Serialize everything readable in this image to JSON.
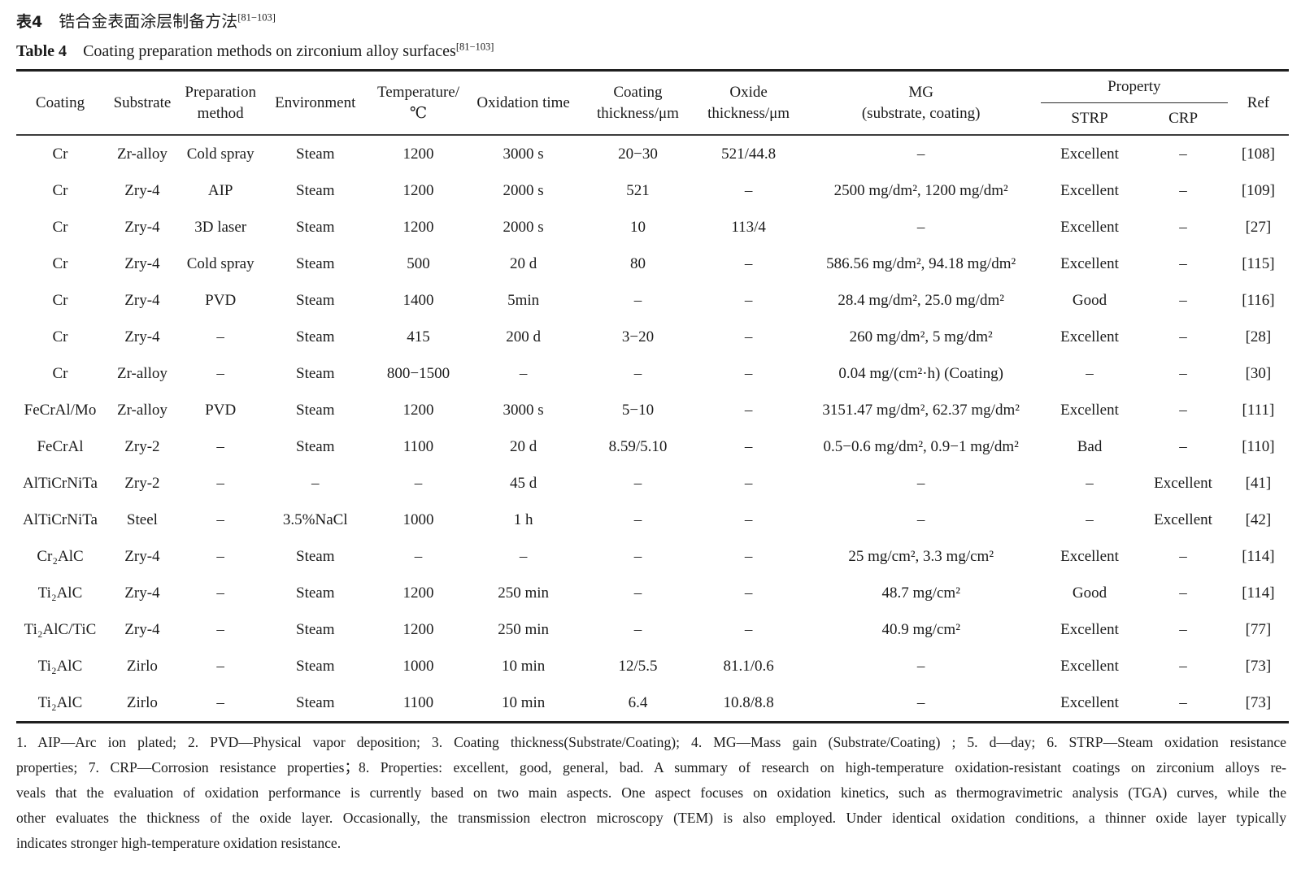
{
  "titles": {
    "zh_label": "表4",
    "zh_text": "锆合金表面涂层制备方法",
    "zh_citation": "[81−103]",
    "en_label": "Table 4",
    "en_text": "Coating preparation methods on zirconium alloy surfaces",
    "en_citation": "[81−103]"
  },
  "table": {
    "headers": {
      "coating": "Coating",
      "substrate": "Substrate",
      "preparation_line1": "Preparation",
      "preparation_line2": "method",
      "environment": "Environment",
      "temperature_line1": "Temperature/",
      "temperature_line2": "℃",
      "oxidation_time": "Oxidation time",
      "coating_thickness_line1": "Coating",
      "coating_thickness_line2": "thickness/μm",
      "oxide_thickness_line1": "Oxide",
      "oxide_thickness_line2": "thickness/μm",
      "mg_line1": "MG",
      "mg_line2": "(substrate, coating)",
      "property": "Property",
      "strp": "STRP",
      "crp": "CRP",
      "ref": "Ref"
    },
    "rows": [
      [
        "Cr",
        "Zr-alloy",
        "Cold spray",
        "Steam",
        "1200",
        "3000 s",
        "20−30",
        "521/44.8",
        "–",
        "Excellent",
        "–",
        "[108]"
      ],
      [
        "Cr",
        "Zry-4",
        "AIP",
        "Steam",
        "1200",
        "2000 s",
        "521",
        "–",
        "2500 mg/dm², 1200 mg/dm²",
        "Excellent",
        "–",
        "[109]"
      ],
      [
        "Cr",
        "Zry-4",
        "3D laser",
        "Steam",
        "1200",
        "2000 s",
        "10",
        "113/4",
        "–",
        "Excellent",
        "–",
        "[27]"
      ],
      [
        "Cr",
        "Zry-4",
        "Cold spray",
        "Steam",
        "500",
        "20 d",
        "80",
        "–",
        "586.56 mg/dm², 94.18 mg/dm²",
        "Excellent",
        "–",
        "[115]"
      ],
      [
        "Cr",
        "Zry-4",
        "PVD",
        "Steam",
        "1400",
        "5min",
        "–",
        "–",
        "28.4 mg/dm², 25.0 mg/dm²",
        "Good",
        "–",
        "[116]"
      ],
      [
        "Cr",
        "Zry-4",
        "–",
        "Steam",
        "415",
        "200 d",
        "3−20",
        "–",
        "260 mg/dm², 5 mg/dm²",
        "Excellent",
        "–",
        "[28]"
      ],
      [
        "Cr",
        "Zr-alloy",
        "–",
        "Steam",
        "800−1500",
        "–",
        "–",
        "–",
        "0.04 mg/(cm²·h) (Coating)",
        "–",
        "–",
        "[30]"
      ],
      [
        "FeCrAl/Mo",
        "Zr-alloy",
        "PVD",
        "Steam",
        "1200",
        "3000 s",
        "5−10",
        "–",
        "3151.47 mg/dm², 62.37 mg/dm²",
        "Excellent",
        "–",
        "[111]"
      ],
      [
        "FeCrAl",
        "Zry-2",
        "–",
        "Steam",
        "1100",
        "20 d",
        "8.59/5.10",
        "–",
        "0.5−0.6 mg/dm², 0.9−1 mg/dm²",
        "Bad",
        "–",
        "[110]"
      ],
      [
        "AlTiCrNiTa",
        "Zry-2",
        "–",
        "–",
        "–",
        "45 d",
        "–",
        "–",
        "–",
        "–",
        "Excellent",
        "[41]"
      ],
      [
        "AlTiCrNiTa",
        "Steel",
        "–",
        "3.5%NaCl",
        "1000",
        "1 h",
        "–",
        "–",
        "–",
        "–",
        "Excellent",
        "[42]"
      ],
      [
        "Cr₂AlC",
        "Zry-4",
        "–",
        "Steam",
        "–",
        "–",
        "–",
        "–",
        "25 mg/cm², 3.3 mg/cm²",
        "Excellent",
        "–",
        "[114]"
      ],
      [
        "Ti₂AlC",
        "Zry-4",
        "–",
        "Steam",
        "1200",
        "250 min",
        "–",
        "–",
        "48.7 mg/cm²",
        "Good",
        "–",
        "[114]"
      ],
      [
        "Ti₂AlC/TiC",
        "Zry-4",
        "–",
        "Steam",
        "1200",
        "250 min",
        "–",
        "–",
        "40.9 mg/cm²",
        "Excellent",
        "–",
        "[77]"
      ],
      [
        "Ti₂AlC",
        "Zirlo",
        "–",
        "Steam",
        "1000",
        "10 min",
        "12/5.5",
        "81.1/0.6",
        "–",
        "Excellent",
        "–",
        "[73]"
      ],
      [
        "Ti₂AlC",
        "Zirlo",
        "–",
        "Steam",
        "1100",
        "10 min",
        "6.4",
        "10.8/8.8",
        "–",
        "Excellent",
        "–",
        "[73]"
      ]
    ]
  },
  "notes": {
    "lines": [
      "1. AIP—Arc ion plated; 2. PVD—Physical vapor deposition; 3. Coating thickness(Substrate/Coating); 4. MG—Mass gain (Substrate/Coating) ; 5. d—day; 6. STRP—Steam oxidation resistance",
      "properties; 7. CRP—Corrosion resistance properties；8. Properties: excellent, good, general, bad. A summary of research on high-temperature oxidation-resistant coatings on zirconium alloys re-",
      "veals that the evaluation of oxidation performance is currently based on two main aspects. One aspect focuses on oxidation kinetics, such as thermogravimetric analysis (TGA) curves, while the",
      "other evaluates the thickness of the oxide layer. Occasionally, the transmission electron microscopy (TEM) is also employed. Under identical oxidation conditions, a thinner oxide layer typically",
      "indicates stronger high-temperature oxidation resistance."
    ]
  }
}
